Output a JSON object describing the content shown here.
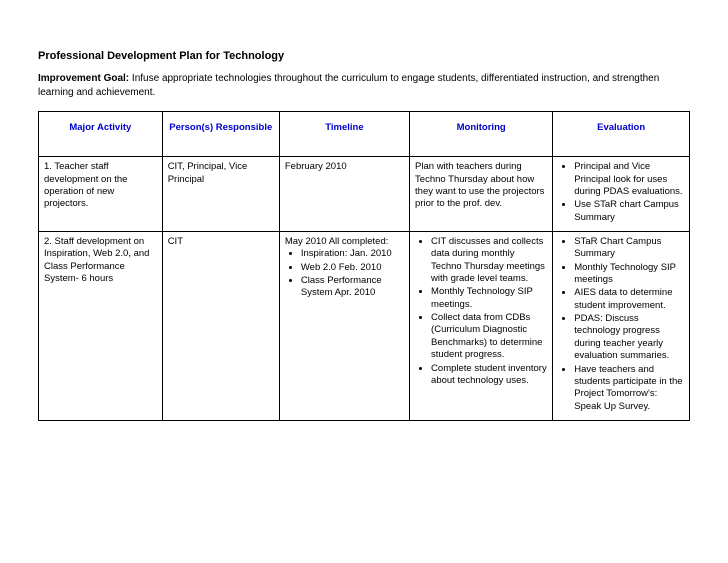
{
  "title": "Professional Development Plan for Technology",
  "goal_label": "Improvement Goal:",
  "goal_text": " Infuse appropriate technologies throughout the curriculum to engage students, differentiated instruction, and strengthen learning and achievement.",
  "headers": {
    "c1": "Major Activity",
    "c2": "Person(s) Responsible",
    "c3": "Timeline",
    "c4": "Monitoring",
    "c5": "Evaluation"
  },
  "rows": [
    {
      "activity": "1. Teacher staff development on the operation of new projectors.",
      "person": "CIT, Principal, Vice Principal",
      "timeline_text": "February 2010",
      "timeline_items": [],
      "monitoring_text": "Plan with teachers during Techno Thursday about how they want to use the projectors prior to the prof. dev.",
      "monitoring_items": [],
      "evaluation_items": [
        "Principal and Vice Principal look for uses during PDAS evaluations.",
        "Use STaR chart Campus Summary"
      ]
    },
    {
      "activity": "2.  Staff development on Inspiration, Web 2.0, and Class Performance System- 6 hours",
      "person": "CIT",
      "timeline_text": "May 2010 All completed:",
      "timeline_items": [
        "Inspiration: Jan. 2010",
        "Web 2.0 Feb. 2010",
        "Class Performance System Apr. 2010"
      ],
      "monitoring_text": "",
      "monitoring_items": [
        "CIT discusses and collects data during monthly Techno Thursday meetings with grade level teams.",
        "Monthly Technology SIP meetings.",
        "Collect data from CDBs (Curriculum Diagnostic Benchmarks) to determine student progress.",
        "Complete student inventory about technology uses."
      ],
      "evaluation_items": [
        "STaR Chart Campus Summary",
        "Monthly Technology SIP meetings",
        "AIES data to determine student improvement.",
        "PDAS: Discuss technology progress during teacher yearly evaluation summaries.",
        "Have teachers and students participate in the Project Tomorrow's: Speak Up Survey."
      ]
    }
  ]
}
